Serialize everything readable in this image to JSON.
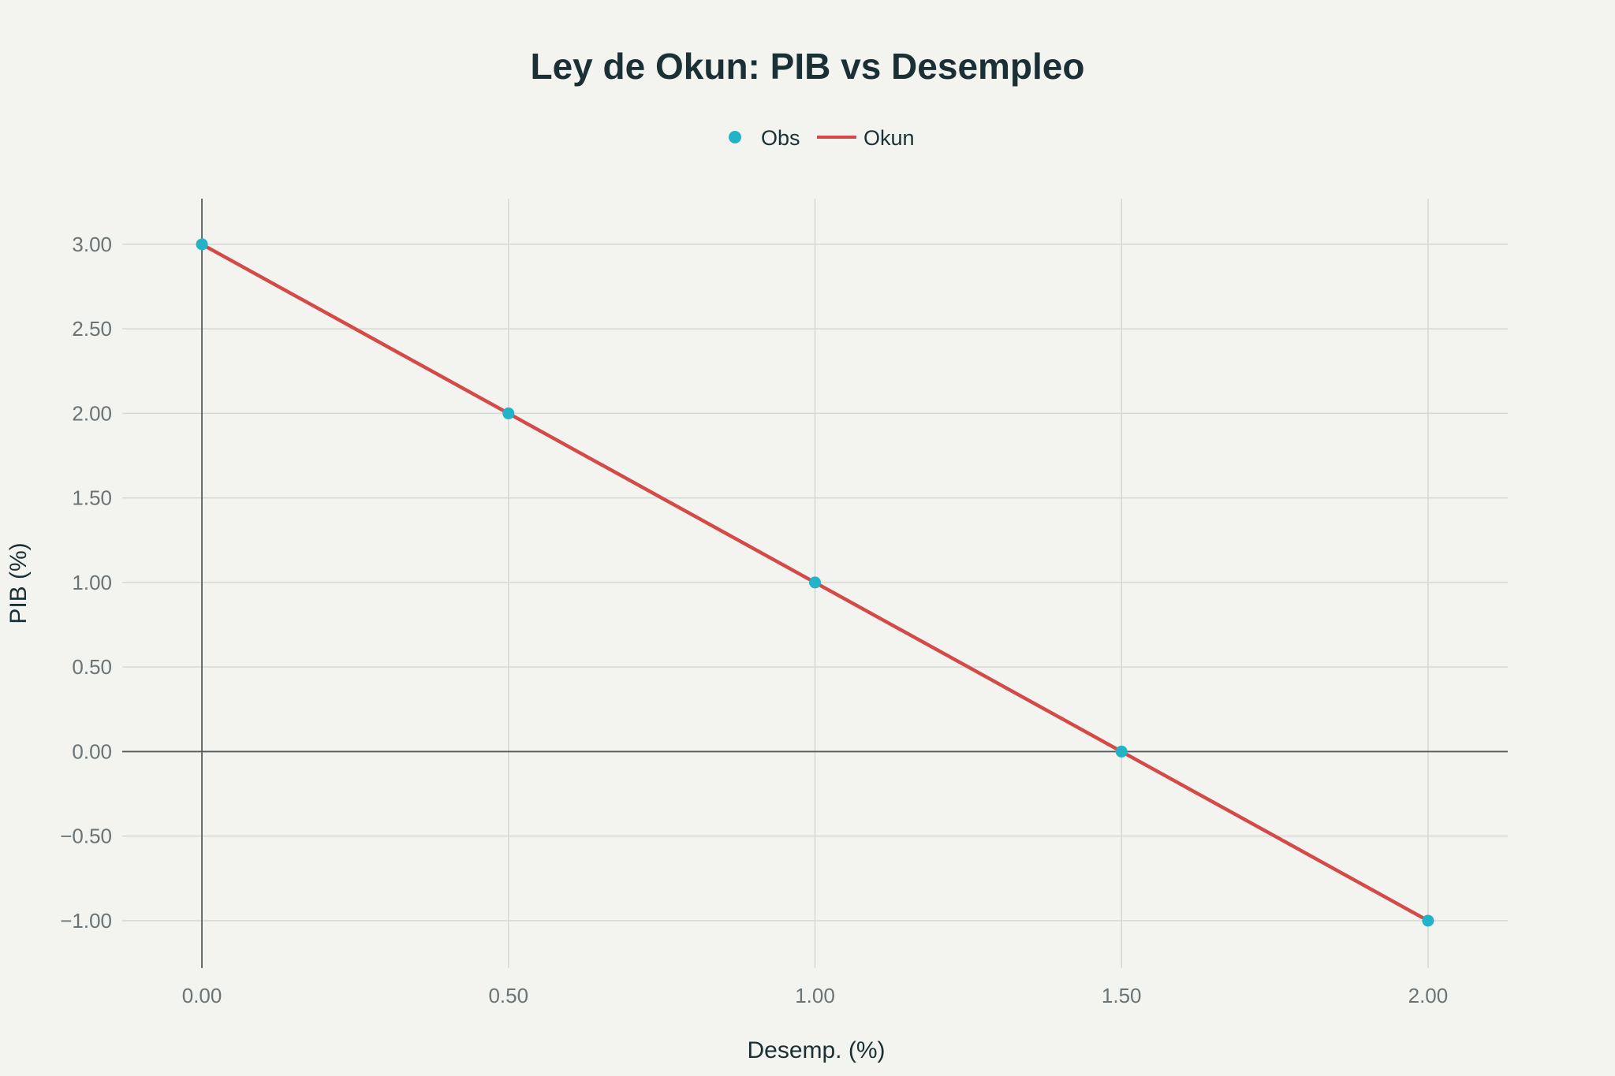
{
  "chart_data": {
    "type": "scatter",
    "title": "Ley de Okun: PIB vs Desempleo",
    "xlabel": "Desemp. (%)",
    "ylabel": "PIB (%)",
    "xlim": [
      -0.13,
      2.13
    ],
    "ylim": [
      -1.28,
      3.27
    ],
    "x_ticks": [
      0,
      0.5,
      1,
      1.5,
      2
    ],
    "x_tick_labels": [
      "0.00",
      "0.50",
      "1.00",
      "1.50",
      "2.00"
    ],
    "y_ticks": [
      -1,
      -0.5,
      0,
      0.5,
      1,
      1.5,
      2,
      2.5,
      3
    ],
    "y_tick_labels": [
      "−1.00",
      "−0.50",
      "0.00",
      "0.50",
      "1.00",
      "1.50",
      "2.00",
      "2.50",
      "3.00"
    ],
    "grid": true,
    "legend_position": "top-center",
    "series": [
      {
        "name": "Obs",
        "mode": "markers",
        "color": "#22b3c9",
        "x": [
          0,
          0.5,
          1,
          1.5,
          2
        ],
        "y": [
          3,
          2,
          1,
          0,
          -1
        ]
      },
      {
        "name": "Okun",
        "mode": "line",
        "color": "#d44a48",
        "x": [
          0,
          0.5,
          1,
          1.5,
          2
        ],
        "y": [
          3,
          2,
          1,
          0,
          -1
        ]
      }
    ]
  }
}
